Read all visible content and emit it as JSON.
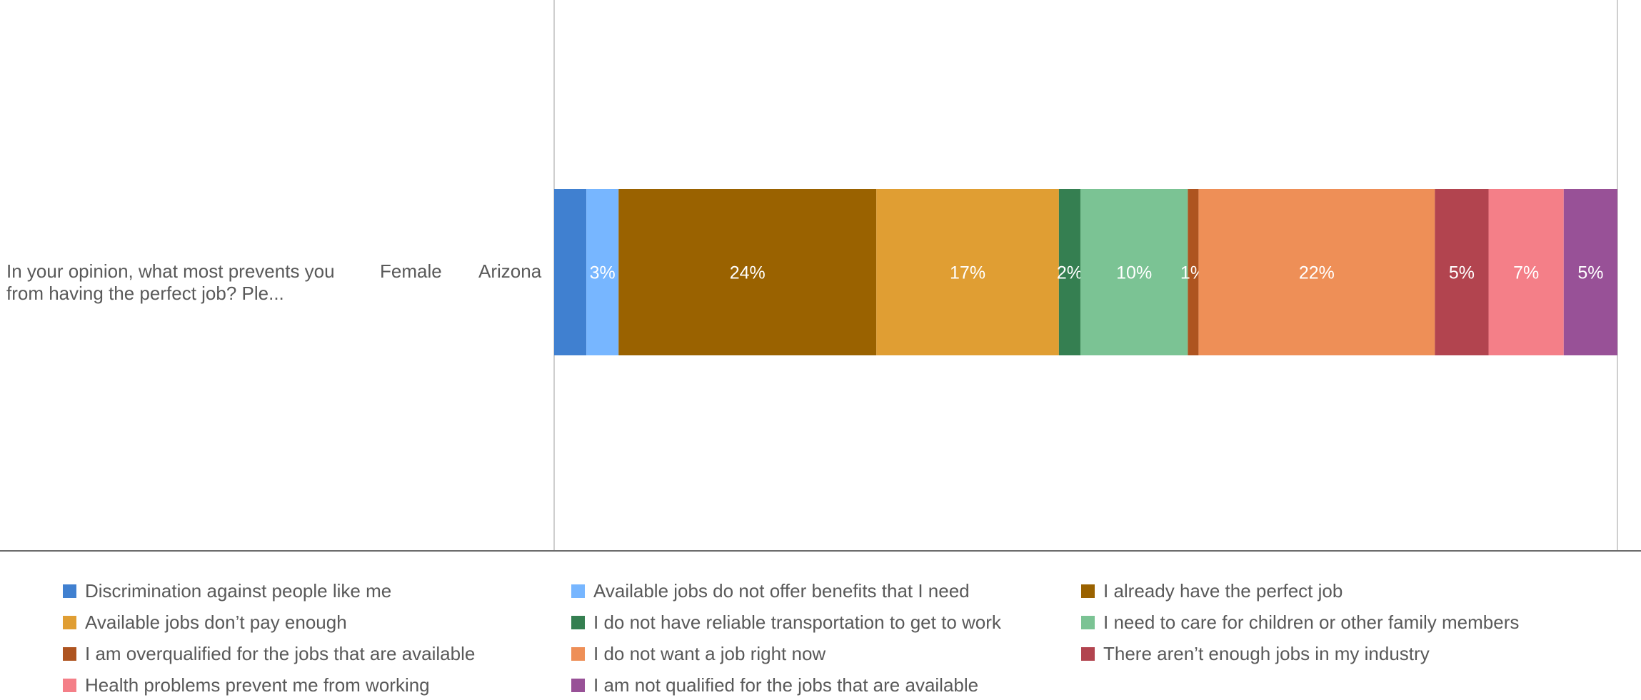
{
  "chart_data": {
    "type": "bar",
    "orientation": "horizontal",
    "stacked": "100%",
    "rows": [
      {
        "question": "In your opinion, what most prevents you from having the perfect job?  Ple...",
        "gender": "Female",
        "state": "Arizona"
      }
    ],
    "xlim": [
      0,
      100
    ],
    "grid": false,
    "legend_position": "bottom",
    "series": [
      {
        "name": "Discrimination against people like me",
        "values": [
          3
        ],
        "label": "",
        "color": "#4080d0"
      },
      {
        "name": "Available jobs do not offer benefits that I need",
        "values": [
          3
        ],
        "label": "3%",
        "color": "#77b6ff"
      },
      {
        "name": "I already have the perfect job",
        "values": [
          24
        ],
        "label": "24%",
        "color": "#9a6200"
      },
      {
        "name": "Available jobs don’t pay enough",
        "values": [
          17
        ],
        "label": "17%",
        "color": "#e09e33"
      },
      {
        "name": "I do not have reliable transportation to get to work",
        "values": [
          2
        ],
        "label": "2%",
        "color": "#357f51"
      },
      {
        "name": "I need to care for children or other family members",
        "values": [
          10
        ],
        "label": "10%",
        "color": "#7bc394"
      },
      {
        "name": "I am overqualified for the jobs that are available",
        "values": [
          1
        ],
        "label": "1%",
        "color": "#ae5420"
      },
      {
        "name": "I do not want a job right now",
        "values": [
          22
        ],
        "label": "22%",
        "color": "#ee8f57"
      },
      {
        "name": "There aren’t enough jobs in my industry",
        "values": [
          5
        ],
        "label": "5%",
        "color": "#b2444f"
      },
      {
        "name": "Health problems prevent me from working",
        "values": [
          7
        ],
        "label": "7%",
        "color": "#f47f88"
      },
      {
        "name": "I am not qualified for the jobs that are available",
        "values": [
          5
        ],
        "label": "5%",
        "color": "#985197"
      }
    ]
  }
}
